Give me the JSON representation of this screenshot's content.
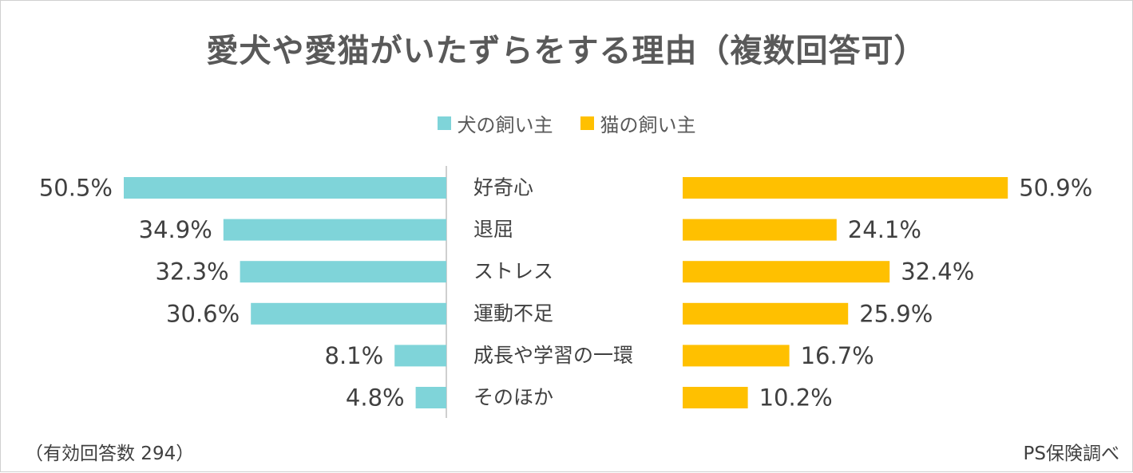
{
  "title": "愛犬や愛猫がいたずらをする理由（複数回答可）",
  "footer": {
    "sample_note": "（有効回答数 294）",
    "source": "PS保険調べ"
  },
  "colors": {
    "dog": "#7fd4d9",
    "cat": "#ffc000",
    "text": "#404040",
    "divider": "#bfbfbf"
  },
  "chart_data": {
    "type": "bar",
    "title": "愛犬や愛猫がいたずらをする理由（複数回答可）",
    "orientation": "horizontal-butterfly",
    "categories": [
      "好奇心",
      "退屈",
      "ストレス",
      "運動不足",
      "成長や学習の一環",
      "そのほか"
    ],
    "series": [
      {
        "name": "犬の飼い主",
        "values": [
          50.5,
          34.9,
          32.3,
          30.6,
          8.1,
          4.8
        ],
        "labels": [
          "50.5%",
          "34.9%",
          "32.3%",
          "30.6%",
          "8.1%",
          "4.8%"
        ]
      },
      {
        "name": "猫の飼い主",
        "values": [
          50.9,
          24.1,
          32.4,
          25.9,
          16.7,
          10.2
        ],
        "labels": [
          "50.9%",
          "24.1%",
          "32.4%",
          "25.9%",
          "16.7%",
          "10.2%"
        ]
      }
    ],
    "unit": "%",
    "xlim": [
      0,
      51
    ],
    "legend": "top-center",
    "grid": false
  }
}
